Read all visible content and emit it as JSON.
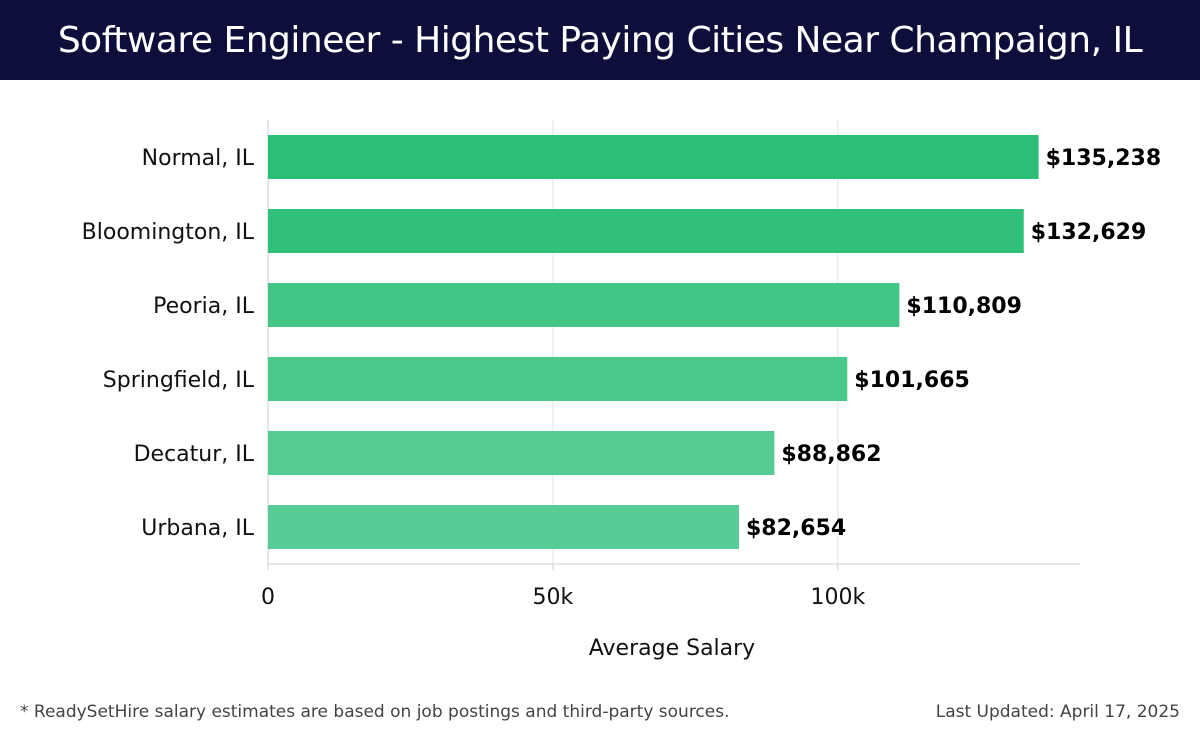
{
  "header": {
    "title": "Software Engineer - Highest Paying Cities Near Champaign, IL"
  },
  "chart_data": {
    "type": "bar",
    "orientation": "horizontal",
    "categories": [
      "Normal, IL",
      "Bloomington, IL",
      "Peoria, IL",
      "Springfield, IL",
      "Decatur, IL",
      "Urbana, IL"
    ],
    "values": [
      135238,
      132629,
      110809,
      101665,
      88862,
      82654
    ],
    "value_labels": [
      "$135,238",
      "$132,629",
      "$110,809",
      "$101,665",
      "$88,862",
      "$82,654"
    ],
    "bar_colors": [
      "#2dbe76",
      "#31c079",
      "#43c587",
      "#49c88b",
      "#55cb94",
      "#58cc96"
    ],
    "xlabel": "Average Salary",
    "ylabel": "",
    "xlim": [
      0,
      142500
    ],
    "xticks": [
      0,
      50000,
      100000
    ],
    "xtick_labels": [
      "0",
      "50k",
      "100k"
    ],
    "grid": true
  },
  "footer": {
    "note": "* ReadySetHire salary estimates are based on job postings and third-party sources.",
    "updated": "Last Updated: April 17, 2025"
  }
}
